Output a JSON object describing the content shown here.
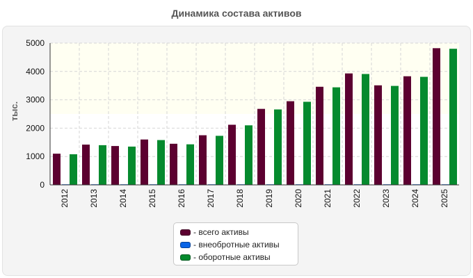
{
  "chart_data": {
    "type": "bar",
    "title": "Динамика состава активов",
    "ylabel": "тыс.",
    "xlabel": "",
    "categories": [
      "2012",
      "2013",
      "2014",
      "2015",
      "2016",
      "2017",
      "2018",
      "2019",
      "2020",
      "2021",
      "2022",
      "2023",
      "2024",
      "2025"
    ],
    "ylim": [
      0,
      5000
    ],
    "yticks": [
      "0",
      "1000",
      "2000",
      "3000",
      "4000",
      "5000"
    ],
    "grid": true,
    "legend_position": "bottom",
    "series": [
      {
        "name": "- всего активы",
        "color": "#5c0030",
        "values": [
          1100,
          1420,
          1370,
          1600,
          1450,
          1750,
          2120,
          2680,
          2950,
          3460,
          3930,
          3510,
          3830,
          4820
        ]
      },
      {
        "name": "- внеобротные активы",
        "color": "#0a64e6",
        "values": [
          20,
          20,
          20,
          20,
          20,
          20,
          20,
          20,
          20,
          20,
          20,
          20,
          20,
          20
        ]
      },
      {
        "name": "- оборотные активы",
        "color": "#058a2e",
        "values": [
          1080,
          1400,
          1350,
          1580,
          1430,
          1730,
          2100,
          2660,
          2930,
          3440,
          3910,
          3490,
          3810,
          4800
        ]
      }
    ]
  }
}
